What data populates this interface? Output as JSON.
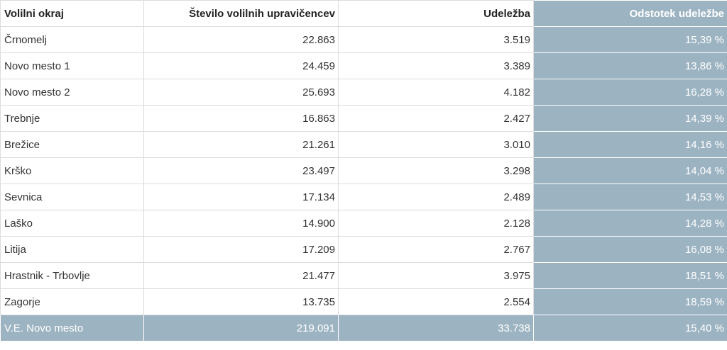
{
  "table": {
    "headers": [
      "Volilni okraj",
      "Število volilnih upravičencev",
      "Udeležba",
      "Odstotek udeležbe"
    ],
    "rows": [
      [
        "Črnomelj",
        "22.863",
        "3.519",
        "15,39 %"
      ],
      [
        "Novo mesto 1",
        "24.459",
        "3.389",
        "13,86 %"
      ],
      [
        "Novo mesto 2",
        "25.693",
        "4.182",
        "16,28 %"
      ],
      [
        "Trebnje",
        "16.863",
        "2.427",
        "14,39 %"
      ],
      [
        "Brežice",
        "21.261",
        "3.010",
        "14,16 %"
      ],
      [
        "Krško",
        "23.497",
        "3.298",
        "14,04 %"
      ],
      [
        "Sevnica",
        "17.134",
        "2.489",
        "14,53 %"
      ],
      [
        "Laško",
        "14.900",
        "2.128",
        "14,28 %"
      ],
      [
        "Litija",
        "17.209",
        "2.767",
        "16,08 %"
      ],
      [
        "Hrastnik - Trbovlje",
        "21.477",
        "3.975",
        "18,51 %"
      ],
      [
        "Zagorje",
        "13.735",
        "2.554",
        "18,59 %"
      ]
    ],
    "total": [
      "V.E. Novo mesto",
      "219.091",
      "33.738",
      "15,40 %"
    ]
  },
  "colors": {
    "accent": "#9cb3c2",
    "border": "#dcdcdc"
  }
}
